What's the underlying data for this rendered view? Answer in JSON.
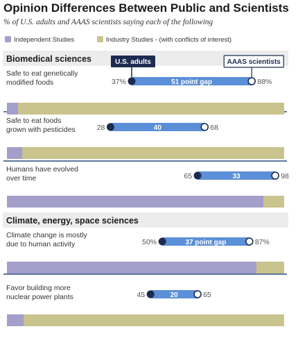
{
  "chart_data": {
    "type": "dumbbell",
    "title": "Opinion Differences Between Public and Scientists",
    "subtitle": "% of U.S. adults and AAAS scientists saying each of the following",
    "legend": [
      "Independent Studies",
      "Industry Studies - (with conflicts of interest)"
    ],
    "series_labels": {
      "public": "U.S. adults",
      "scientists": "AAAS scientists"
    },
    "colors": {
      "independent": "#a39fca",
      "industry": "#c9c38d",
      "dot_dark": "#1c2b4f",
      "gap_bar": "#5b8fd8",
      "section_bg": "#ececec",
      "divider": "#2a4a7a"
    },
    "sections": [
      {
        "label": "Biomedical sciences",
        "items": [
          {
            "question": [
              "Safe to eat genetically",
              "modified foods"
            ],
            "public": 37,
            "scientists": 88,
            "gap": 51,
            "gap_label": "51 point gap",
            "public_label": "37%",
            "scientists_label": "88%",
            "independent_share": 0.04
          },
          {
            "question": [
              "Safe to eat foods",
              "grown with pesticides"
            ],
            "public": 28,
            "scientists": 68,
            "gap": 40,
            "gap_label": "40",
            "public_label": "28",
            "scientists_label": "68",
            "independent_share": 0.055
          },
          {
            "question": [
              "Humans have evolved",
              "over time"
            ],
            "public": 65,
            "scientists": 98,
            "gap": 33,
            "gap_label": "33",
            "public_label": "65",
            "scientists_label": "98",
            "independent_share": 0.925
          }
        ]
      },
      {
        "label": "Climate, energy, space sciences",
        "items": [
          {
            "question": [
              "Climate change is mostly",
              "due to human activity"
            ],
            "public": 50,
            "scientists": 87,
            "gap": 37,
            "gap_label": "37 point gap",
            "public_label": "50%",
            "scientists_label": "87%",
            "independent_share": 0.9
          },
          {
            "question": [
              "Favor building more",
              "nuclear power plants"
            ],
            "public": 45,
            "scientists": 65,
            "gap": 20,
            "gap_label": "20",
            "public_label": "45",
            "scientists_label": "65",
            "independent_share": 0.06
          }
        ]
      }
    ]
  }
}
